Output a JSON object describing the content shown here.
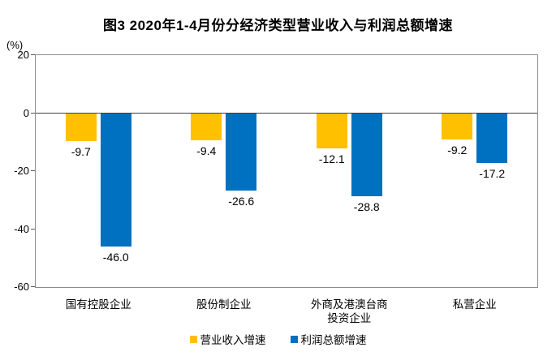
{
  "page": {
    "title": "图3 2020年1-4月份分经济类型营业收入与利润总额增速",
    "y_axis_unit": "(%)"
  },
  "chart_data": {
    "type": "bar",
    "title": "图3 2020年1-4月份分经济类型营业收入与利润总额增速",
    "ylabel": "(%)",
    "xlabel": "",
    "categories": [
      "国有控股企业",
      "股份制企业",
      "外商及港澳台商\n投资企业",
      "私营企业"
    ],
    "series": [
      {
        "name": "营业收入增速",
        "color": "#FFC000",
        "values": [
          -9.7,
          -9.4,
          -12.1,
          -9.2
        ]
      },
      {
        "name": "利润总额增速",
        "color": "#0070C0",
        "values": [
          -46.0,
          -26.6,
          -28.8,
          -17.2
        ]
      }
    ],
    "ylim": [
      -60,
      20
    ],
    "y_ticks": [
      20,
      0,
      -20,
      -40,
      -60
    ],
    "grid": false,
    "value_labels": true,
    "value_label_decimals": 1,
    "legend_position": "bottom"
  },
  "colors": {
    "revenue_series": "#FFC000",
    "profit_series": "#0070C0",
    "plot_border": "#8c8c8c",
    "zero_line": "#404040",
    "tick_mark": "#595959",
    "text": "#000000",
    "background": "#FFFFFF"
  }
}
